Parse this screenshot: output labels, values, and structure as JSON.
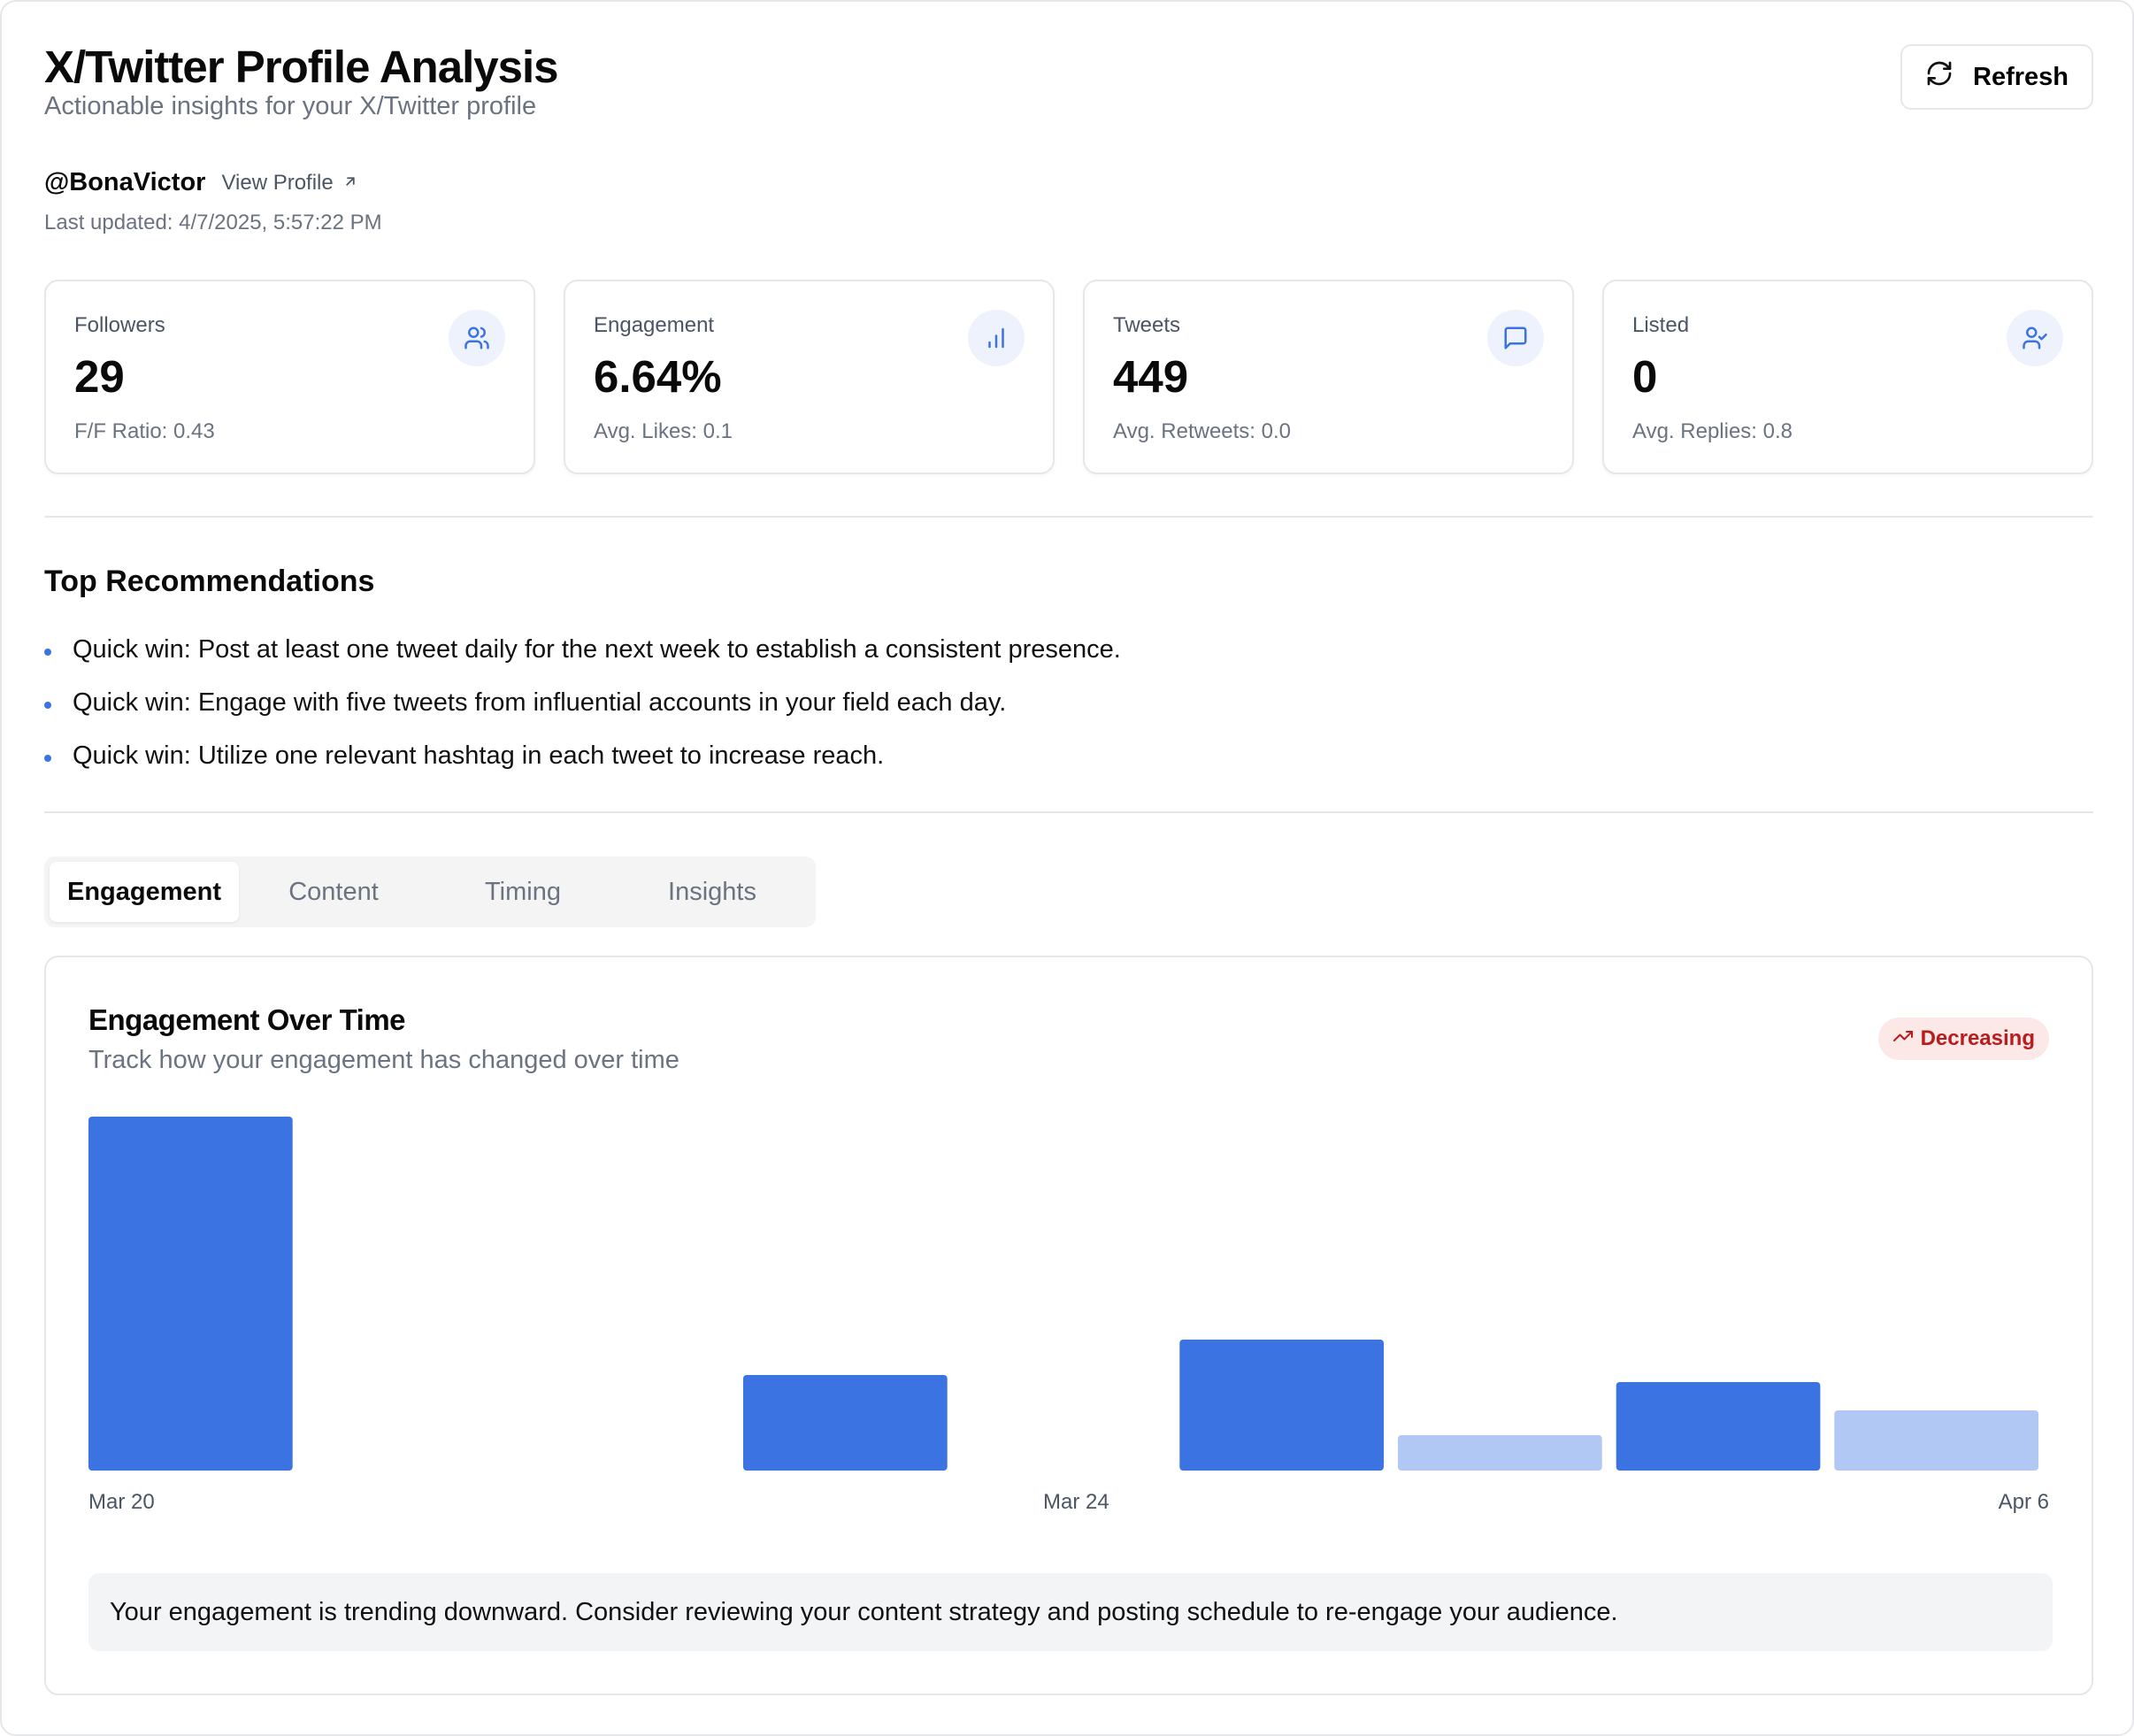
{
  "header": {
    "title": "X/Twitter Profile Analysis",
    "subtitle": "Actionable insights for your X/Twitter profile",
    "refresh_label": "Refresh",
    "refresh_icon": "refresh-icon"
  },
  "profile": {
    "handle": "@BonaVictor",
    "view_profile_label": "View Profile",
    "last_updated": "Last updated: 4/7/2025, 5:57:22 PM"
  },
  "stats": [
    {
      "label": "Followers",
      "value": "29",
      "sub": "F/F Ratio: 0.43",
      "icon": "users-icon"
    },
    {
      "label": "Engagement",
      "value": "6.64%",
      "sub": "Avg. Likes: 0.1",
      "icon": "bar-chart-icon"
    },
    {
      "label": "Tweets",
      "value": "449",
      "sub": "Avg. Retweets: 0.0",
      "icon": "message-icon"
    },
    {
      "label": "Listed",
      "value": "0",
      "sub": "Avg. Replies: 0.8",
      "icon": "user-check-icon"
    }
  ],
  "recommendations": {
    "title": "Top Recommendations",
    "items": [
      "Quick win: Post at least one tweet daily for the next week to establish a consistent presence.",
      "Quick win: Engage with five tweets from influential accounts in your field each day.",
      "Quick win: Utilize one relevant hashtag in each tweet to increase reach."
    ]
  },
  "tabs": [
    {
      "label": "Engagement",
      "active": true
    },
    {
      "label": "Content",
      "active": false
    },
    {
      "label": "Timing",
      "active": false
    },
    {
      "label": "Insights",
      "active": false
    }
  ],
  "engagement_chart": {
    "title": "Engagement Over Time",
    "subtitle": "Track how your engagement has changed over time",
    "trend_label": "Decreasing",
    "note": "Your engagement is trending downward. Consider reviewing your content strategy and posting schedule to re-engage your audience."
  },
  "colors": {
    "accent": "#3b73e2",
    "accent_light": "#b1c7f4",
    "trend_bg": "#fde8e8",
    "trend_text": "#b91c1c"
  },
  "chart_data": {
    "type": "bar",
    "title": "Engagement Over Time",
    "x_tick_labels": [
      "Mar 20",
      "Mar 24",
      "Apr 6"
    ],
    "values": [
      100,
      0,
      0,
      27,
      0,
      37,
      10,
      25,
      17
    ],
    "highlight": [
      true,
      true,
      true,
      true,
      true,
      true,
      false,
      true,
      false
    ],
    "ylim": [
      0,
      100
    ],
    "grid": false,
    "legend": "none"
  }
}
